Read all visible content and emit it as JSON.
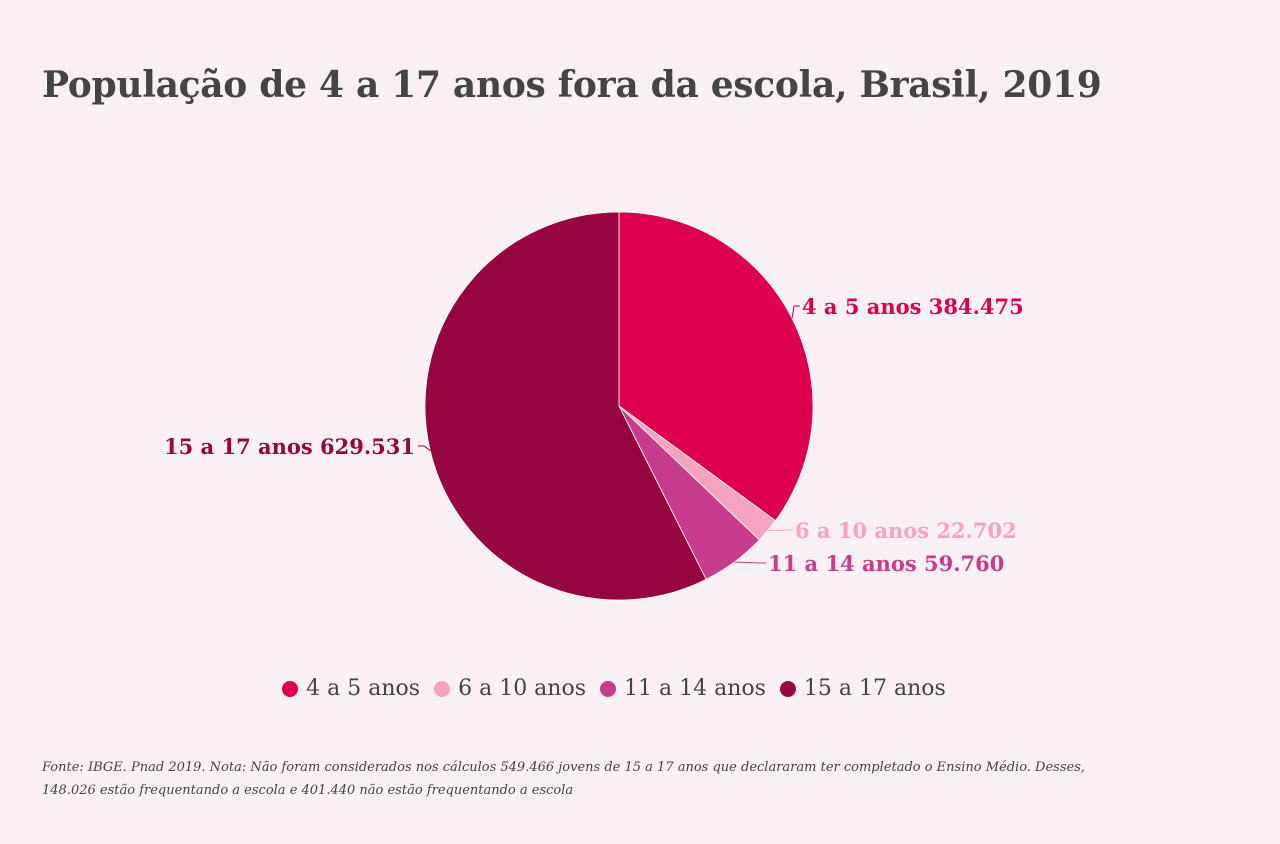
{
  "chart_data": {
    "type": "pie",
    "title": "População de 4 a 17 anos fora da escola, Brasil, 2019",
    "categories": [
      "4 a 5 anos",
      "6 a 10 anos",
      "11 a 14 anos",
      "15 a 17 anos"
    ],
    "values": [
      384475,
      22702,
      59760,
      629531
    ],
    "value_labels": [
      "384.475",
      "22.702",
      "59.760",
      "629.531"
    ],
    "colors": [
      "#dc004e",
      "#f5a3c0",
      "#c83c8c",
      "#960640"
    ],
    "legend_placement": "bottom"
  },
  "footnote": "Fonte: IBGE. Pnad 2019. Nota: Não foram considerados nos cálculos 549.466 jovens de 15 a 17 anos que declararam ter completado o Ensino Médio. Desses, 148.026 estão frequentando a escola e 401.440 não estão frequentando a escola"
}
